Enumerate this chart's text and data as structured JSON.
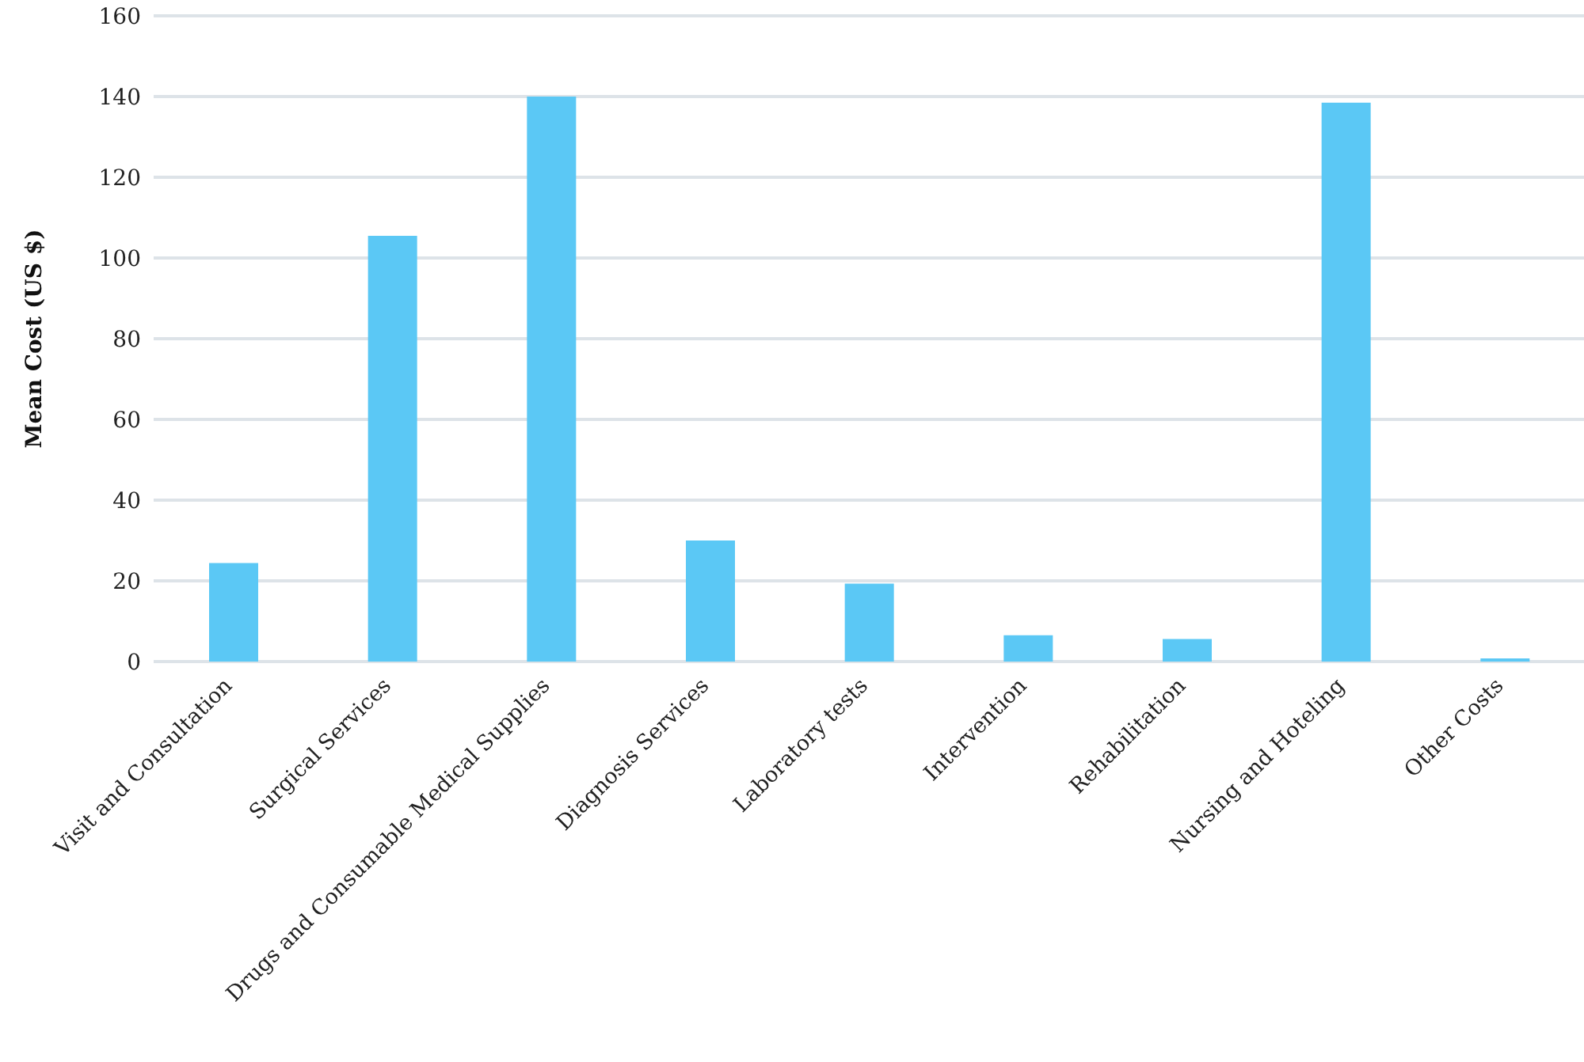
{
  "chart_data": {
    "type": "bar",
    "ylabel": "Mean Cost (US $)",
    "categories": [
      "Visit and Consultation",
      "Surgical Services",
      "Drugs and Consumable Medical Supplies",
      "Diagnosis Services",
      "Laboratory tests",
      "Intervention",
      "Rehabilitation",
      "Nursing and Hoteling",
      "Other Costs"
    ],
    "values": [
      24.4,
      105.5,
      140,
      30,
      19.3,
      6.5,
      5.6,
      138.5,
      0.8
    ],
    "color": "#5bc8f5",
    "ylim": [
      0,
      160
    ],
    "yticks": [
      0,
      20,
      40,
      60,
      80,
      100,
      120,
      140,
      160
    ],
    "grid": "y",
    "legend": false
  }
}
